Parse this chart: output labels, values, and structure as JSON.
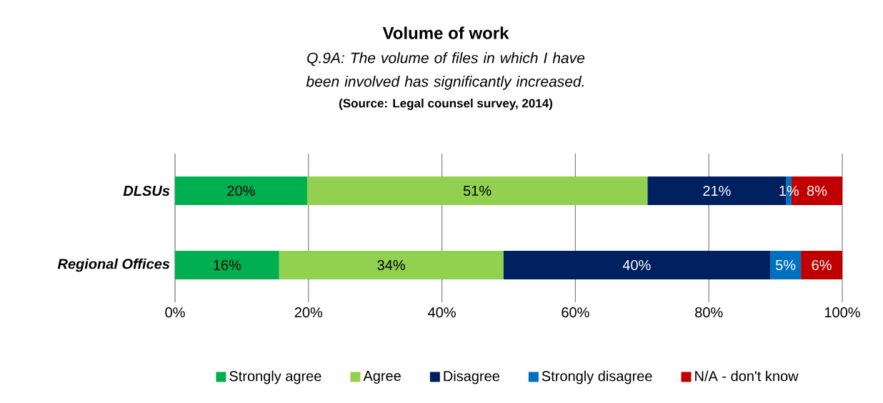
{
  "chart_data": {
    "type": "bar",
    "orientation": "horizontal",
    "stacked": true,
    "title": "Volume of work",
    "subtitle": "Q.9A: The volume of files in which I have been involved has significantly increased.",
    "annotations": [
      "(Source: Legal counsel survey, 2014)"
    ],
    "categories": [
      "DLSUs",
      "Regional Offices"
    ],
    "series": [
      {
        "name": "Strongly agree",
        "color": "#00b050",
        "values": [
          19.8,
          15.6
        ],
        "value_labels": [
          "20%",
          "16%"
        ]
      },
      {
        "name": "Agree",
        "color": "#92d050",
        "values": [
          51.0,
          33.6
        ],
        "value_labels": [
          "51%",
          "34%"
        ]
      },
      {
        "name": "Disagree",
        "color": "#002060",
        "values": [
          20.8,
          40.0
        ],
        "value_labels": [
          "21%",
          "40%"
        ]
      },
      {
        "name": "Strongly disagree",
        "color": "#0070c0",
        "values": [
          0.8,
          4.6
        ],
        "value_labels": [
          "1%",
          "5%"
        ]
      },
      {
        "name": "N/A - don't know",
        "color": "#c00000",
        "values": [
          7.6,
          6.2
        ],
        "value_labels": [
          "8%",
          "6%"
        ]
      }
    ],
    "xlim": [
      0,
      100
    ],
    "xticks": [
      {
        "value": 0,
        "label": "0%"
      },
      {
        "value": 20,
        "label": "20%"
      },
      {
        "value": 40,
        "label": "40%"
      },
      {
        "value": 60,
        "label": "60%"
      },
      {
        "value": 80,
        "label": "80%"
      },
      {
        "value": 100,
        "label": "100%"
      }
    ],
    "grid": "x",
    "legend": "bottom"
  }
}
